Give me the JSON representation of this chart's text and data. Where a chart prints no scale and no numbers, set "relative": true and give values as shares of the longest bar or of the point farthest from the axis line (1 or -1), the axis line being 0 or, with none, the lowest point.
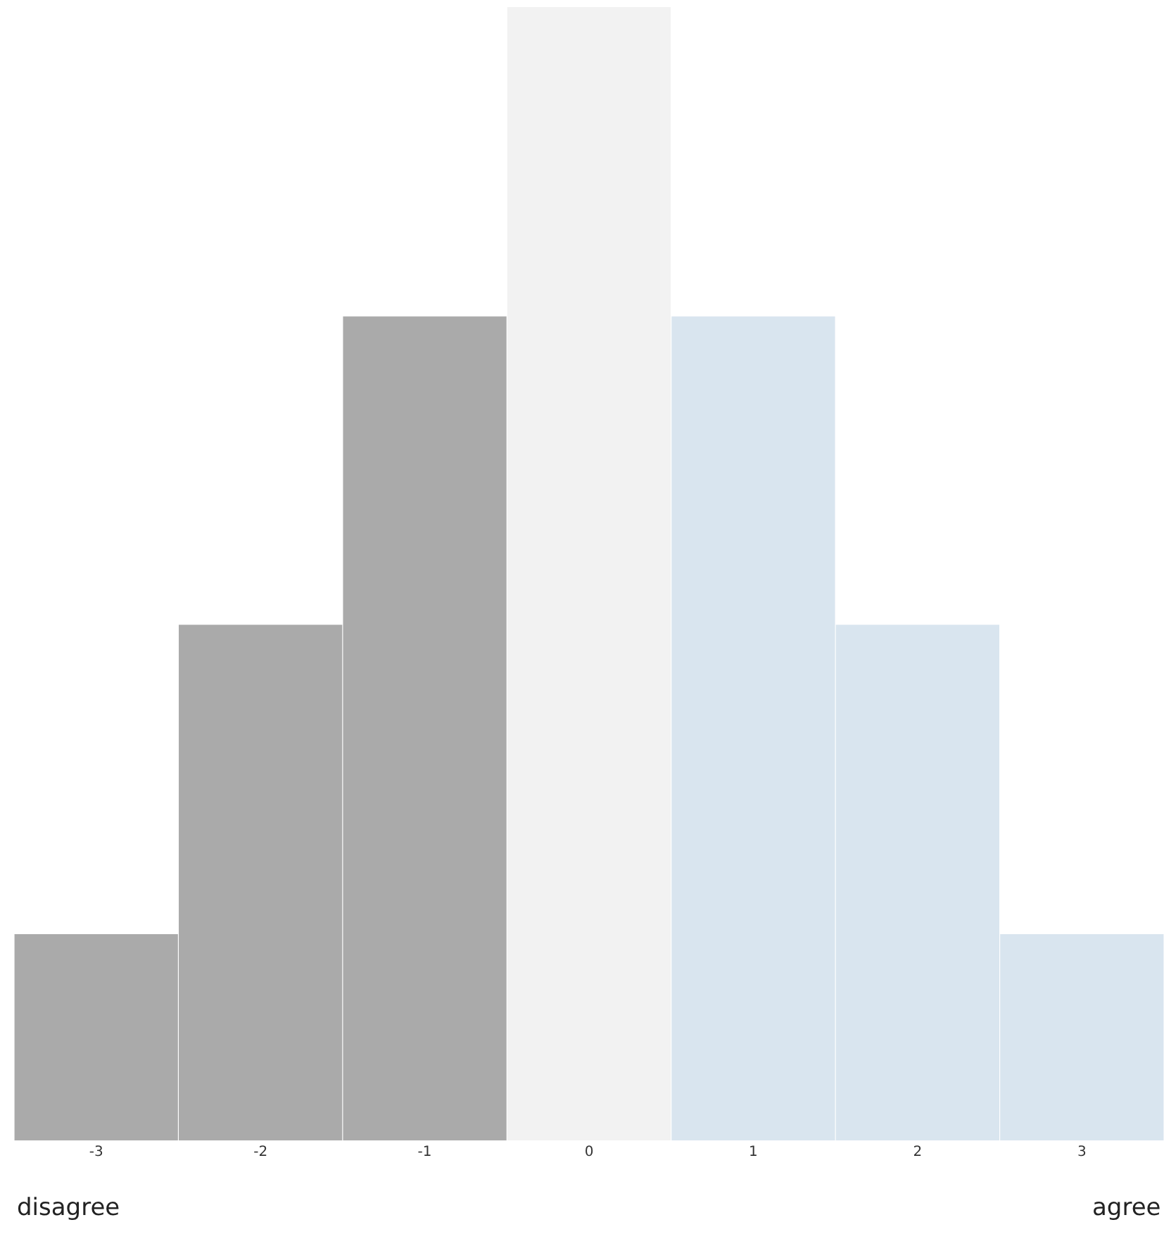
{
  "chart_data": {
    "type": "bar",
    "relative": true,
    "categories": [
      "-3",
      "-2",
      "-1",
      "0",
      "1",
      "2",
      "3"
    ],
    "values": [
      0.182,
      0.455,
      0.727,
      1,
      0.727,
      0.455,
      0.182
    ],
    "colors": [
      "#aaaaaa",
      "#aaaaaa",
      "#aaaaaa",
      "#f2f2f2",
      "#d9e5ef",
      "#d9e5ef",
      "#d9e5ef"
    ],
    "annotations": [
      "disagree",
      "agree"
    ]
  }
}
